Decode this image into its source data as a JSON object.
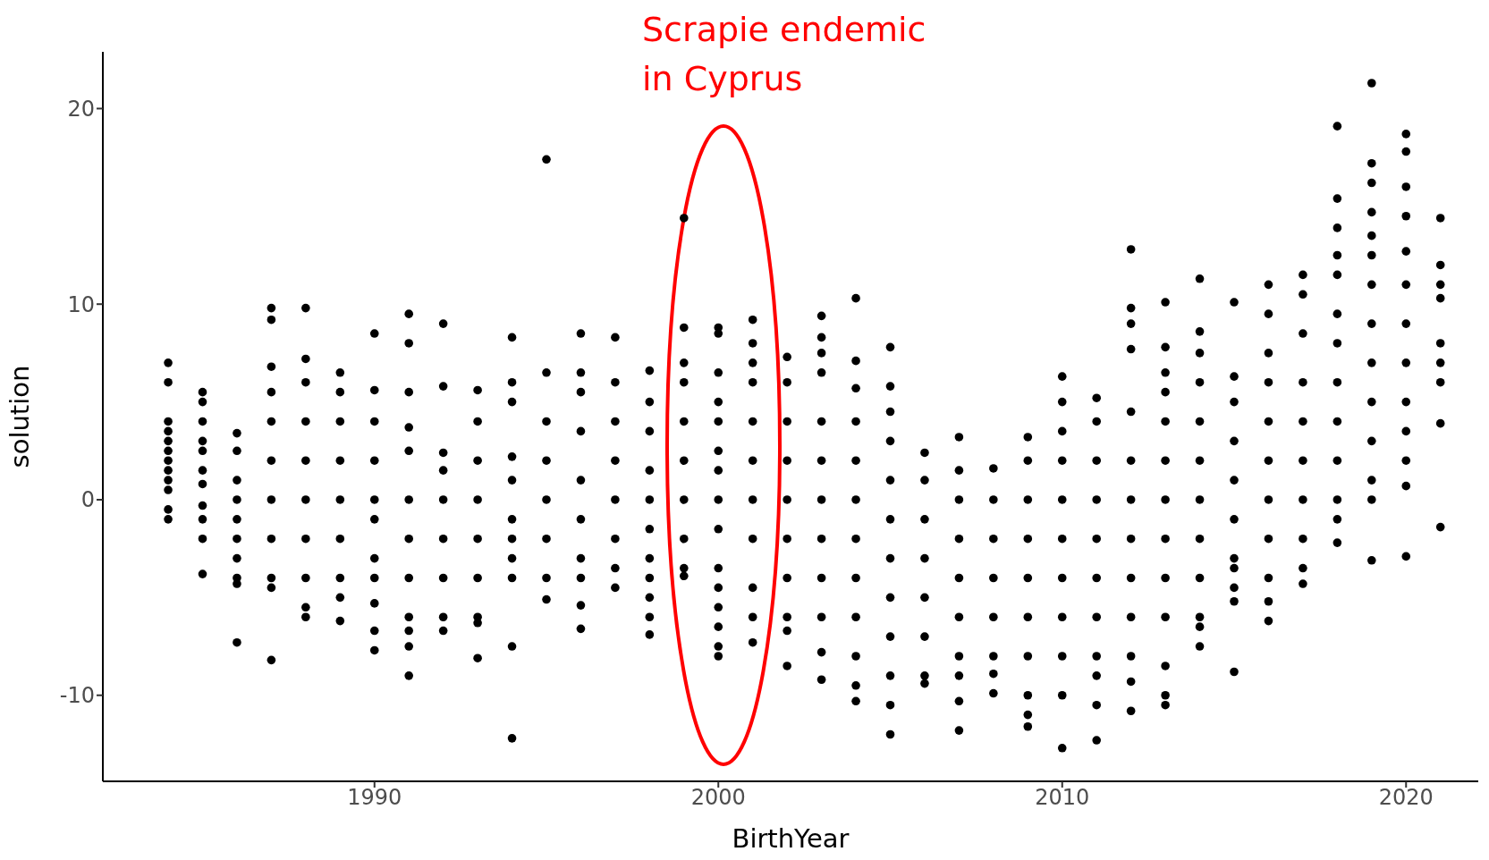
{
  "chart_data": {
    "type": "scatter",
    "xlabel": "BirthYear",
    "ylabel": "solution",
    "annotations": [
      "Scrapie endemic\nin Cyprus"
    ],
    "xlim": [
      1982.1,
      2022.1
    ],
    "ylim": [
      -14.4,
      22.9
    ],
    "xticks": [
      1990,
      2000,
      2010,
      2020
    ],
    "yticks": [
      -10,
      0,
      10,
      20
    ],
    "grid": false,
    "legend": false,
    "marker": "circle",
    "series": [
      {
        "color": "#000000",
        "x": [
          1984,
          1984,
          1984,
          1984,
          1984,
          1984,
          1984,
          1984,
          1984,
          1984,
          1984,
          1984,
          1985,
          1985,
          1985,
          1985,
          1985,
          1985,
          1985,
          1985,
          1985,
          1985,
          1985,
          1986,
          1986,
          1986,
          1986,
          1986,
          1986,
          1986,
          1986,
          1986,
          1986,
          1987,
          1987,
          1987,
          1987,
          1987,
          1987,
          1987,
          1987,
          1987,
          1987,
          1987,
          1988,
          1988,
          1988,
          1988,
          1988,
          1988,
          1988,
          1988,
          1988,
          1988,
          1989,
          1989,
          1989,
          1989,
          1989,
          1989,
          1989,
          1989,
          1989,
          1990,
          1990,
          1990,
          1990,
          1990,
          1990,
          1990,
          1990,
          1990,
          1990,
          1990,
          1991,
          1991,
          1991,
          1991,
          1991,
          1991,
          1991,
          1991,
          1991,
          1991,
          1991,
          1991,
          1992,
          1992,
          1992,
          1992,
          1992,
          1992,
          1992,
          1992,
          1992,
          1993,
          1993,
          1993,
          1993,
          1993,
          1993,
          1993,
          1993,
          1993,
          1994,
          1994,
          1994,
          1994,
          1994,
          1994,
          1994,
          1994,
          1994,
          1994,
          1994,
          1995,
          1995,
          1995,
          1995,
          1995,
          1995,
          1995,
          1995,
          1996,
          1996,
          1996,
          1996,
          1996,
          1996,
          1996,
          1996,
          1996,
          1996,
          1997,
          1997,
          1997,
          1997,
          1997,
          1997,
          1997,
          1997,
          1998,
          1998,
          1998,
          1998,
          1998,
          1998,
          1998,
          1998,
          1998,
          1998,
          1998,
          1999,
          1999,
          1999,
          1999,
          1999,
          1999,
          1999,
          1999,
          1999,
          1999,
          2000,
          2000,
          2000,
          2000,
          2000,
          2000,
          2000,
          2000,
          2000,
          2000,
          2000,
          2000,
          2000,
          2000,
          2000,
          2001,
          2001,
          2001,
          2001,
          2001,
          2001,
          2001,
          2001,
          2001,
          2001,
          2001,
          2002,
          2002,
          2002,
          2002,
          2002,
          2002,
          2002,
          2002,
          2002,
          2002,
          2003,
          2003,
          2003,
          2003,
          2003,
          2003,
          2003,
          2003,
          2003,
          2003,
          2003,
          2003,
          2004,
          2004,
          2004,
          2004,
          2004,
          2004,
          2004,
          2004,
          2004,
          2004,
          2004,
          2004,
          2005,
          2005,
          2005,
          2005,
          2005,
          2005,
          2005,
          2005,
          2005,
          2005,
          2005,
          2005,
          2006,
          2006,
          2006,
          2006,
          2006,
          2006,
          2006,
          2006,
          2007,
          2007,
          2007,
          2007,
          2007,
          2007,
          2007,
          2007,
          2007,
          2007,
          2008,
          2008,
          2008,
          2008,
          2008,
          2008,
          2008,
          2008,
          2009,
          2009,
          2009,
          2009,
          2009,
          2009,
          2009,
          2009,
          2009,
          2009,
          2010,
          2010,
          2010,
          2010,
          2010,
          2010,
          2010,
          2010,
          2010,
          2010,
          2010,
          2011,
          2011,
          2011,
          2011,
          2011,
          2011,
          2011,
          2011,
          2011,
          2011,
          2011,
          2012,
          2012,
          2012,
          2012,
          2012,
          2012,
          2012,
          2012,
          2012,
          2012,
          2012,
          2012,
          2012,
          2013,
          2013,
          2013,
          2013,
          2013,
          2013,
          2013,
          2013,
          2013,
          2013,
          2013,
          2013,
          2013,
          2014,
          2014,
          2014,
          2014,
          2014,
          2014,
          2014,
          2014,
          2014,
          2014,
          2014,
          2014,
          2015,
          2015,
          2015,
          2015,
          2015,
          2015,
          2015,
          2015,
          2015,
          2015,
          2015,
          2016,
          2016,
          2016,
          2016,
          2016,
          2016,
          2016,
          2016,
          2016,
          2016,
          2016,
          2017,
          2017,
          2017,
          2017,
          2017,
          2017,
          2017,
          2017,
          2017,
          2017,
          2018,
          2018,
          2018,
          2018,
          2018,
          2018,
          2018,
          2018,
          2018,
          2018,
          2018,
          2018,
          2018,
          2019,
          2019,
          2019,
          2019,
          2019,
          2019,
          2019,
          2019,
          2019,
          2019,
          2019,
          2019,
          2019,
          2019,
          2020,
          2020,
          2020,
          2020,
          2020,
          2020,
          2020,
          2020,
          2020,
          2020,
          2020,
          2020,
          2020,
          2021,
          2021,
          2021,
          2021,
          2021,
          2021,
          2021,
          2021,
          2021
        ],
        "values": [
          7,
          6,
          4,
          3.5,
          3,
          2.5,
          2,
          1.5,
          1,
          0.5,
          -0.5,
          -1,
          5.5,
          5,
          4,
          3,
          2.5,
          1.5,
          0.8,
          -0.3,
          -1,
          -2,
          -3.8,
          3.4,
          2.5,
          1,
          0,
          -1,
          -2,
          -3,
          -4,
          -4.3,
          -7.3,
          9.8,
          9.2,
          6.8,
          5.5,
          4,
          2,
          0,
          -2,
          -4,
          -4.5,
          -8.2,
          9.8,
          7.2,
          6,
          4,
          2,
          0,
          -2,
          -4,
          -5.5,
          -6,
          6.5,
          5.5,
          4,
          2,
          0,
          -2,
          -4,
          -5,
          -6.2,
          8.5,
          5.6,
          4,
          2,
          0,
          -1,
          -3,
          -4,
          -5.3,
          -6.7,
          -7.7,
          9.5,
          8,
          5.5,
          3.7,
          2.5,
          0,
          -2,
          -4,
          -6,
          -6.7,
          -7.5,
          -9,
          9,
          5.8,
          2.4,
          1.5,
          0,
          -2,
          -4,
          -6,
          -6.7,
          5.6,
          4,
          2,
          0,
          -2,
          -4,
          -6,
          -6.3,
          -8.1,
          8.3,
          6,
          5,
          2.2,
          1,
          -1,
          -2,
          -3,
          -4,
          -7.5,
          -12.2,
          17.4,
          6.5,
          4,
          2,
          0,
          -2,
          -4,
          -5.1,
          8.5,
          6.5,
          5.5,
          3.5,
          1,
          -1,
          -3,
          -4,
          -5.4,
          -6.6,
          8.3,
          6,
          4,
          2,
          0,
          -2,
          -3.5,
          -4.5,
          6.6,
          5,
          3.5,
          1.5,
          0,
          -1.5,
          -3,
          -4,
          -5,
          -6,
          -6.9,
          14.4,
          8.8,
          7,
          6,
          4,
          2,
          0,
          -2,
          -3.5,
          -3.9,
          8.8,
          8.5,
          6.5,
          5,
          4,
          2.5,
          1.5,
          0,
          -1.5,
          -3.5,
          -4.5,
          -5.5,
          -6.5,
          -7.5,
          -8,
          9.2,
          8,
          7,
          6,
          4,
          2,
          0,
          -2,
          -4.5,
          -6,
          -7.3,
          7.3,
          6,
          4,
          2,
          0,
          -2,
          -4,
          -6,
          -6.7,
          -8.5,
          9.4,
          8.3,
          7.5,
          6.5,
          4,
          2,
          0,
          -2,
          -4,
          -6,
          -7.8,
          -9.2,
          10.3,
          7.1,
          5.7,
          4,
          2,
          0,
          -2,
          -4,
          -6,
          -8,
          -9.5,
          -10.3,
          7.8,
          5.8,
          4.5,
          3,
          1,
          -1,
          -3,
          -5,
          -7,
          -9,
          -10.5,
          -12,
          2.4,
          1,
          -1,
          -3,
          -5,
          -7,
          -9,
          -9.4,
          3.2,
          1.5,
          0,
          -2,
          -4,
          -6,
          -8,
          -9,
          -10.3,
          -11.8,
          1.6,
          0,
          -2,
          -4,
          -6,
          -8,
          -8.9,
          -9.9,
          3.2,
          2,
          0,
          -2,
          -4,
          -6,
          -8,
          -10,
          -11,
          -11.6,
          6.3,
          5,
          3.5,
          2,
          0,
          -2,
          -4,
          -6,
          -8,
          -10,
          -12.7,
          5.2,
          4,
          2,
          0,
          -2,
          -4,
          -6,
          -8,
          -9,
          -10.5,
          -12.3,
          12.8,
          9.8,
          9,
          7.7,
          4.5,
          2,
          0,
          -2,
          -4,
          -6,
          -8,
          -9.3,
          -10.8,
          10.1,
          7.8,
          6.5,
          5.5,
          4,
          2,
          0,
          -2,
          -4,
          -6,
          -8.5,
          -10,
          -10.5,
          11.3,
          8.6,
          7.5,
          6,
          4,
          2,
          0,
          -2,
          -4,
          -6,
          -6.5,
          -7.5,
          10.1,
          6.3,
          5,
          3,
          1,
          -1,
          -3,
          -3.5,
          -4.5,
          -5.2,
          -8.8,
          11,
          9.5,
          7.5,
          6,
          4,
          2,
          0,
          -2,
          -4,
          -5.2,
          -6.2,
          11.5,
          10.5,
          8.5,
          6,
          4,
          2,
          0,
          -2,
          -3.5,
          -4.3,
          19.1,
          15.4,
          13.9,
          12.5,
          11.5,
          9.5,
          8,
          6,
          4,
          2,
          0,
          -1,
          -2.2,
          21.3,
          17.2,
          16.2,
          14.7,
          13.5,
          12.5,
          11,
          9,
          7,
          5,
          3,
          1,
          0,
          -3.1,
          18.7,
          17.8,
          16,
          14.5,
          12.7,
          11,
          9,
          7,
          5,
          3.5,
          2,
          0.7,
          -2.9,
          14.4,
          12,
          11,
          10.3,
          8,
          7,
          6,
          3.9,
          -1.4
        ]
      }
    ]
  }
}
